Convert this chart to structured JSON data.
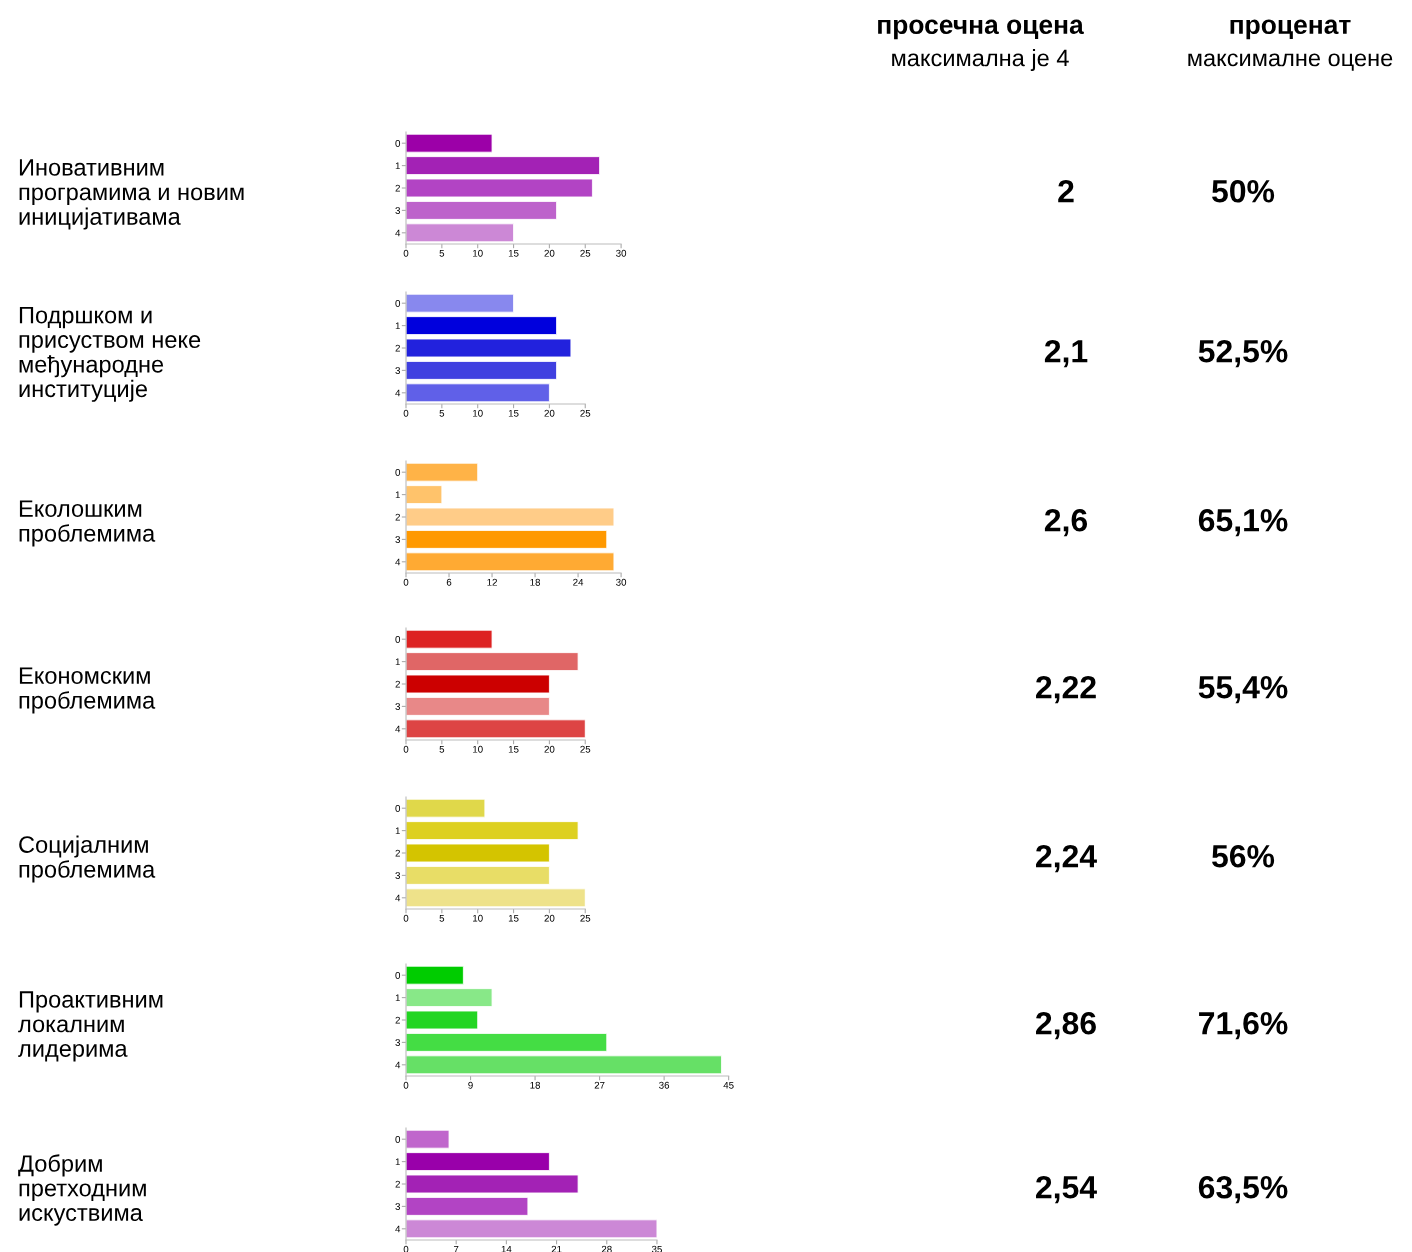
{
  "chart_data": [
    {
      "type": "other",
      "title": "просечна оцена",
      "subtitle": "максимална је 4"
    },
    {
      "type": "other",
      "title": "проценат",
      "subtitle": "максималне оцене"
    },
    {
      "type": "bar",
      "orientation": "horizontal",
      "ylabel": "Иновативним\nпрограмима и новим\nиницијативама",
      "categories": [
        "0",
        "1",
        "2",
        "3",
        "4"
      ],
      "values": [
        12,
        27,
        26,
        21,
        15
      ],
      "colors": [
        "#9c00a8",
        "#a322b5",
        "#b244c4",
        "#bd62cb",
        "#cc88d6"
      ],
      "xlim": [
        0,
        30
      ],
      "xticks": [
        0,
        5,
        10,
        15,
        20,
        25,
        30
      ],
      "annotations": [
        "2",
        "50%"
      ]
    },
    {
      "type": "bar",
      "orientation": "horizontal",
      "ylabel": "Подршком и\nприсуством неке\nмеђународне\nинституције",
      "categories": [
        "0",
        "1",
        "2",
        "3",
        "4"
      ],
      "values": [
        15,
        21,
        23,
        21,
        20
      ],
      "colors": [
        "#8888ee",
        "#0000dd",
        "#2222dd",
        "#3f3fe0",
        "#6060e8"
      ],
      "xlim": [
        0,
        25
      ],
      "xticks": [
        0,
        5,
        10,
        15,
        20,
        25
      ],
      "annotations": [
        "2,1",
        "52,5%"
      ]
    },
    {
      "type": "bar",
      "orientation": "horizontal",
      "ylabel": "Еколошким\nпроблемима",
      "categories": [
        "0",
        "1",
        "2",
        "3",
        "4"
      ],
      "values": [
        10,
        5,
        29,
        28,
        29
      ],
      "colors": [
        "#ffb347",
        "#ffc36b",
        "#ffcc88",
        "#ff9900",
        "#ffaa33"
      ],
      "xlim": [
        0,
        30
      ],
      "xticks": [
        0,
        6,
        12,
        18,
        24,
        30
      ],
      "annotations": [
        "2,6",
        "65,1%"
      ]
    },
    {
      "type": "bar",
      "orientation": "horizontal",
      "ylabel": "Економским\nпроблемима",
      "categories": [
        "0",
        "1",
        "2",
        "3",
        "4"
      ],
      "values": [
        12,
        24,
        20,
        20,
        25
      ],
      "colors": [
        "#dd2222",
        "#e06666",
        "#cc0000",
        "#e88888",
        "#dd4444"
      ],
      "xlim": [
        0,
        25
      ],
      "xticks": [
        0,
        5,
        10,
        15,
        20,
        25
      ],
      "annotations": [
        "2,22",
        "55,4%"
      ]
    },
    {
      "type": "bar",
      "orientation": "horizontal",
      "ylabel": "Социјалним\nпроблемима",
      "categories": [
        "0",
        "1",
        "2",
        "3",
        "4"
      ],
      "values": [
        11,
        24,
        20,
        20,
        25
      ],
      "colors": [
        "#e0d84a",
        "#ddd020",
        "#d4c400",
        "#e8dd66",
        "#eee28a"
      ],
      "xlim": [
        0,
        25
      ],
      "xticks": [
        0,
        5,
        10,
        15,
        20,
        25
      ],
      "annotations": [
        "2,24",
        "56%"
      ]
    },
    {
      "type": "bar",
      "orientation": "horizontal",
      "ylabel": "Проактивним\nлокалним\nлидерима",
      "categories": [
        "0",
        "1",
        "2",
        "3",
        "4"
      ],
      "values": [
        8,
        12,
        10,
        28,
        44
      ],
      "colors": [
        "#00cc00",
        "#88e888",
        "#22d522",
        "#44dd44",
        "#66e066"
      ],
      "xlim": [
        0,
        45
      ],
      "xticks": [
        0,
        9,
        18,
        27,
        36,
        45
      ],
      "annotations": [
        "2,86",
        "71,6%"
      ]
    },
    {
      "type": "bar",
      "orientation": "horizontal",
      "ylabel": "Добрим\nпретходним\nискуствима",
      "categories": [
        "0",
        "1",
        "2",
        "3",
        "4"
      ],
      "values": [
        6,
        20,
        24,
        17,
        35
      ],
      "colors": [
        "#c066cc",
        "#9900aa",
        "#a322b5",
        "#b244c4",
        "#cc88d6"
      ],
      "xlim": [
        0,
        35
      ],
      "xticks": [
        0,
        7,
        14,
        21,
        28,
        35
      ],
      "annotations": [
        "2,54",
        "63,5%"
      ]
    }
  ]
}
